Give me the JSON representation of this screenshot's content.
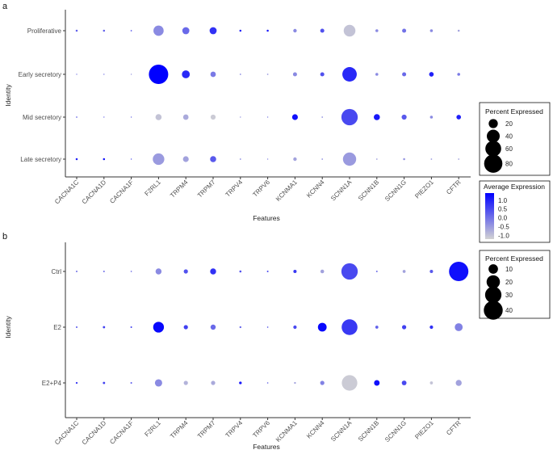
{
  "colors": {
    "low": "#d3d3d3",
    "high": "#0000ff"
  },
  "chart_data": [
    {
      "type": "dotplot",
      "panel_label": "a",
      "xlabel": "Features",
      "ylabel": "Identity",
      "features": [
        "CACNA1C",
        "CACNA1D",
        "CACNA1F",
        "F2RL1",
        "TRPM4",
        "TRPM7",
        "TRPV4",
        "TRPV6",
        "KCNMA1",
        "KCNN4",
        "SCNN1A",
        "SCNN1B",
        "SCNN1G",
        "PIEZO1",
        "CFTR"
      ],
      "identities": [
        "Proliferative",
        "Early secretory",
        "Mid secretory",
        "Late secretory"
      ],
      "pct_expressed": [
        [
          1,
          1,
          0.5,
          25,
          12,
          12,
          1,
          1,
          3,
          4,
          33,
          2,
          4,
          2,
          1
        ],
        [
          0.3,
          0.3,
          0.2,
          90,
          15,
          7,
          0.5,
          0.5,
          4,
          4,
          50,
          2,
          4,
          5,
          2
        ],
        [
          0.5,
          0.3,
          0.2,
          9,
          7,
          6,
          0.3,
          0.2,
          8,
          0.5,
          64,
          9,
          6,
          2,
          5
        ],
        [
          1,
          1,
          0.3,
          32,
          8,
          9,
          0.5,
          0.3,
          3,
          0.5,
          42,
          0.5,
          1,
          0.5,
          0.5
        ]
      ],
      "avg_expression": [
        [
          0.2,
          0.2,
          0.3,
          -0.3,
          0.1,
          0.8,
          1.0,
          1.1,
          -0.3,
          0.4,
          -1.0,
          -0.3,
          0.0,
          -0.3,
          -0.6
        ],
        [
          -0.2,
          -0.1,
          -0.5,
          1.4,
          0.9,
          -0.1,
          -0.3,
          -0.5,
          -0.3,
          0.4,
          0.9,
          -0.3,
          0.1,
          1.0,
          -0.1
        ],
        [
          0.0,
          0.0,
          0.0,
          -1.0,
          -0.7,
          -1.1,
          -0.4,
          -0.2,
          1.2,
          -0.4,
          0.5,
          1.1,
          0.3,
          -0.3,
          1.0
        ],
        [
          1.0,
          1.2,
          0.3,
          -0.5,
          -0.6,
          0.3,
          -0.3,
          -0.3,
          -0.6,
          -0.4,
          -0.5,
          -0.6,
          -0.4,
          -0.5,
          -0.6
        ]
      ],
      "legend_size": {
        "title": "Percent Expressed",
        "levels": [
          20,
          40,
          60,
          80
        ]
      },
      "legend_color": {
        "title": "Average Expression",
        "ticks": [
          1.0,
          0.5,
          0.0,
          -0.5,
          -1.0
        ],
        "tick_labels": [
          "1.0",
          "0.5",
          "0.0",
          "-0.5",
          "-1.0"
        ],
        "range": [
          -1.2,
          1.4
        ]
      }
    },
    {
      "type": "dotplot",
      "panel_label": "b",
      "xlabel": "Features",
      "ylabel": "Identity",
      "features": [
        "CACNA1C",
        "CACNA1D",
        "CACNA1F",
        "F2RL1",
        "TRPM4",
        "TRPM7",
        "TRPV4",
        "TRPV6",
        "KCNMA1",
        "KCNN4",
        "SCNN1A",
        "SCNN1B",
        "SCNN1G",
        "PIEZO1",
        "CFTR"
      ],
      "identities": [
        "Ctrl",
        "E2",
        "E2+P4"
      ],
      "pct_expressed": [
        [
          0.3,
          0.3,
          0.2,
          4,
          2,
          4,
          0.5,
          0.3,
          1.2,
          1.5,
          30,
          0.3,
          1,
          1.2,
          42
        ],
        [
          0.3,
          0.6,
          0.3,
          13,
          2,
          3,
          0.4,
          0.2,
          1.3,
          8.5,
          28,
          1,
          2,
          1.3,
          7
        ],
        [
          0.4,
          0.6,
          0.3,
          6,
          2,
          2,
          0.8,
          0.2,
          0.4,
          2,
          27,
          3.5,
          2.5,
          1,
          4
        ]
      ],
      "avg_expression": [
        [
          0.0,
          0.0,
          0.0,
          -0.3,
          0.4,
          0.8,
          0.4,
          0.5,
          0.7,
          -0.6,
          0.5,
          0.0,
          -0.6,
          0.3,
          1.2
        ],
        [
          0.3,
          0.6,
          0.6,
          1.3,
          0.6,
          0.1,
          0.2,
          0.2,
          0.5,
          1.3,
          0.7,
          0.2,
          0.6,
          0.8,
          -0.2
        ],
        [
          0.7,
          0.6,
          0.3,
          -0.3,
          -0.8,
          -0.7,
          1.1,
          0.0,
          -0.6,
          -0.2,
          -1.1,
          1.2,
          0.5,
          -1.0,
          -0.6
        ]
      ],
      "legend_size": {
        "title": "Percent Expressed",
        "levels": [
          10,
          20,
          30,
          40
        ]
      }
    }
  ]
}
